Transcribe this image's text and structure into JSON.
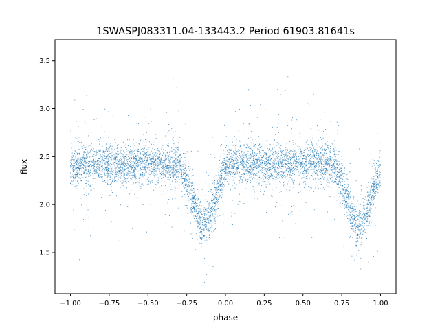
{
  "chart_data": {
    "type": "scatter",
    "title": "1SWASPJ083311.04-133443.2 Period 61903.81641s",
    "xlabel": "phase",
    "ylabel": "flux",
    "xlim": [
      -1.1,
      1.1
    ],
    "ylim": [
      1.07,
      3.72
    ],
    "xticks": [
      "−1.00",
      "−0.75",
      "−0.50",
      "−0.25",
      "0.00",
      "0.25",
      "0.50",
      "0.75",
      "1.00"
    ],
    "xtick_values": [
      -1,
      -0.75,
      -0.5,
      -0.25,
      0,
      0.25,
      0.5,
      0.75,
      1
    ],
    "yticks": [
      "1.5",
      "2.0",
      "2.5",
      "3.0",
      "3.5"
    ],
    "ytick_values": [
      1.5,
      2.0,
      2.5,
      3.0,
      3.5
    ],
    "grid": false,
    "marker_color": "#1f77b4",
    "binned_phase": [
      -1.0,
      -0.95,
      -0.9,
      -0.85,
      -0.8,
      -0.75,
      -0.7,
      -0.65,
      -0.6,
      -0.55,
      -0.5,
      -0.45,
      -0.4,
      -0.35,
      -0.3,
      -0.25,
      -0.2,
      -0.15,
      -0.1,
      -0.05,
      0.0,
      0.05,
      0.1,
      0.15,
      0.2,
      0.25,
      0.3,
      0.35,
      0.4,
      0.45,
      0.5,
      0.55,
      0.6,
      0.65,
      0.7,
      0.75,
      0.8,
      0.85,
      0.9,
      0.95,
      1.0
    ],
    "binned_flux": [
      2.37,
      2.42,
      2.42,
      2.42,
      2.42,
      2.42,
      2.42,
      2.42,
      2.42,
      2.42,
      2.42,
      2.42,
      2.42,
      2.42,
      2.42,
      2.23,
      1.99,
      1.75,
      1.89,
      2.13,
      2.37,
      2.42,
      2.42,
      2.42,
      2.42,
      2.42,
      2.42,
      2.42,
      2.42,
      2.42,
      2.42,
      2.42,
      2.42,
      2.42,
      2.42,
      2.23,
      1.99,
      1.75,
      1.89,
      2.13,
      2.37
    ]
  }
}
